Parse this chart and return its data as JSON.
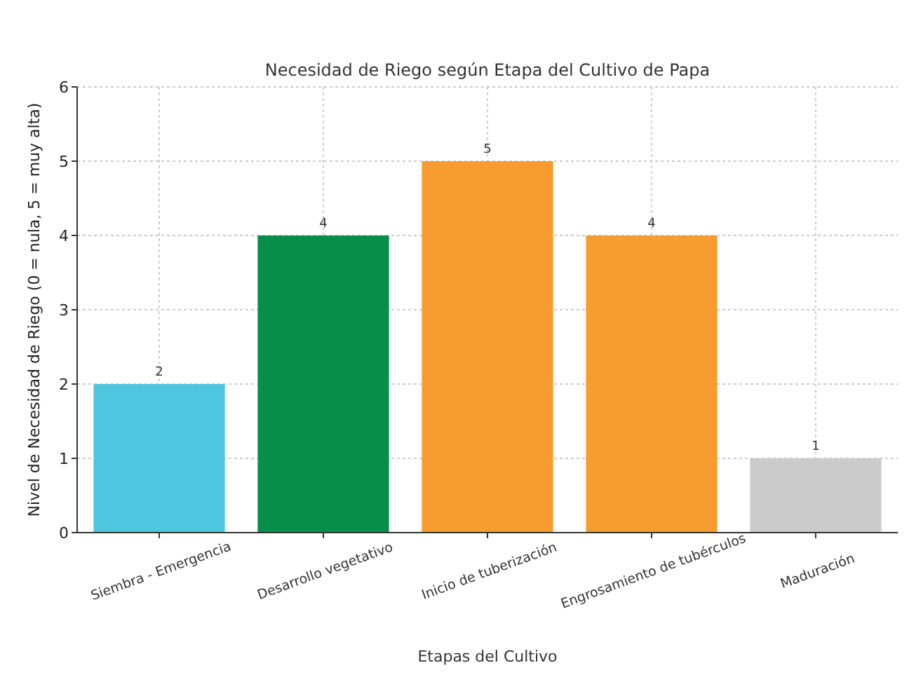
{
  "chart_data": {
    "type": "bar",
    "title": "Necesidad de Riego según Etapa del Cultivo de Papa",
    "xlabel": "Etapas del Cultivo",
    "ylabel": "Nivel de Necesidad de Riego (0 = nula, 5 = muy alta)",
    "categories": [
      "Siembra - Emergencia",
      "Desarrollo vegetativo",
      "Inicio de tuberización",
      "Engrosamiento de tubérculos",
      "Maduración"
    ],
    "values": [
      2,
      4,
      5,
      4,
      1
    ],
    "colors": [
      "#4fc6df",
      "#078f4a",
      "#f79c2f",
      "#f79c2f",
      "#cbcbcb"
    ],
    "ylim": [
      0,
      6
    ],
    "yticks": [
      0,
      1,
      2,
      3,
      4,
      5,
      6
    ],
    "grid": true,
    "data_labels": true
  }
}
